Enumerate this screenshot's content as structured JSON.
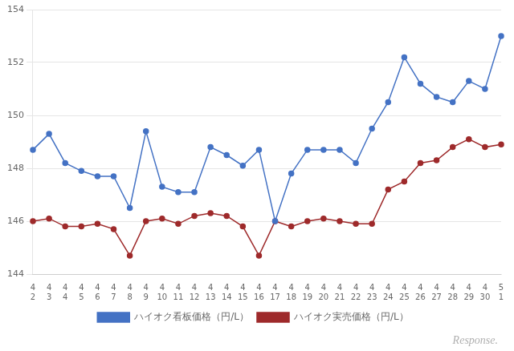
{
  "chart_data": {
    "type": "line",
    "categories": [
      "4\n2",
      "4\n3",
      "4\n4",
      "4\n5",
      "4\n6",
      "4\n7",
      "4\n8",
      "4\n9",
      "4\n10",
      "4\n11",
      "4\n12",
      "4\n13",
      "4\n14",
      "4\n15",
      "4\n16",
      "4\n17",
      "4\n18",
      "4\n19",
      "4\n20",
      "4\n21",
      "4\n22",
      "4\n23",
      "4\n24",
      "4\n25",
      "4\n26",
      "4\n27",
      "4\n28",
      "4\n29",
      "4\n30",
      "5\n1"
    ],
    "series": [
      {
        "name": "ハイオク看板価格（円/L）",
        "color": "#4472c4",
        "marker": "circle",
        "line_style": "solid",
        "values": [
          148.7,
          149.3,
          148.2,
          147.9,
          147.7,
          147.7,
          146.5,
          149.4,
          147.3,
          147.1,
          147.1,
          148.8,
          148.5,
          148.1,
          148.7,
          146.0,
          147.8,
          148.7,
          148.7,
          148.7,
          148.2,
          149.5,
          150.5,
          152.2,
          151.2,
          150.7,
          150.5,
          151.3,
          151.0,
          153.0
        ]
      },
      {
        "name": "ハイオク実売価格（円/L）",
        "color": "#9e2a2b",
        "marker": "circle",
        "line_style": "solid",
        "values": [
          146.0,
          146.1,
          145.8,
          145.8,
          145.9,
          145.7,
          144.7,
          146.0,
          146.1,
          145.9,
          146.2,
          146.3,
          146.2,
          145.8,
          144.7,
          146.0,
          145.8,
          146.0,
          146.1,
          146.0,
          145.9,
          145.9,
          147.2,
          147.5,
          148.2,
          148.3,
          148.8,
          149.1,
          148.8,
          148.9
        ]
      }
    ],
    "ylim": [
      144,
      154
    ],
    "yticks": [
      144,
      146,
      148,
      150,
      152,
      154
    ],
    "grid": true,
    "legend": "bottom",
    "annotations": [
      {
        "text": "Response.",
        "color": "#b0b0b0"
      }
    ]
  }
}
